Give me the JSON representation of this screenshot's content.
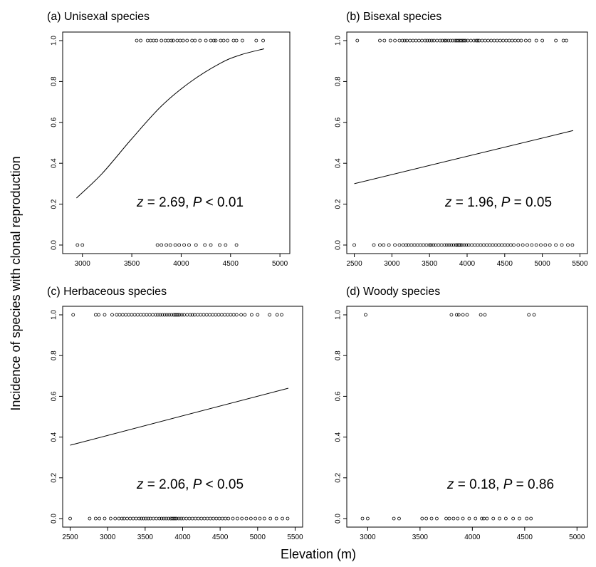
{
  "chart_data": {
    "type": "scatter",
    "ylabel": "Incidence of species with clonal reproduction",
    "xlabel": "Elevation (m)",
    "panels": [
      {
        "title": "(a) Unisexal species",
        "xlim": [
          2800,
          5100
        ],
        "ylim": [
          0,
          1
        ],
        "xticks": [
          "3000",
          "3500",
          "4000",
          "4500",
          "5000"
        ],
        "yticks": [
          "0.0",
          "0.2",
          "0.4",
          "0.6",
          "0.8",
          "1.0"
        ],
        "stat": {
          "z_label": "z",
          "z_text": " = 2.69, ",
          "p_label": "P",
          "p_text": " < 0.01"
        },
        "points_y1": [
          3550,
          3590,
          3660,
          3690,
          3720,
          3750,
          3800,
          3840,
          3870,
          3900,
          3920,
          3960,
          3990,
          4020,
          4060,
          4110,
          4140,
          4190,
          4250,
          4300,
          4330,
          4350,
          4400,
          4430,
          4470,
          4530,
          4560,
          4620,
          4760,
          4830
        ],
        "points_y0": [
          2950,
          3000,
          3760,
          3800,
          3850,
          3890,
          3940,
          3980,
          4030,
          4080,
          4150,
          4240,
          4300,
          4390,
          4450,
          4560
        ],
        "fit": {
          "kind": "logistic",
          "points": [
            [
              2940,
              0.23
            ],
            [
              3200,
              0.35
            ],
            [
              3500,
              0.52
            ],
            [
              3800,
              0.68
            ],
            [
              4100,
              0.8
            ],
            [
              4400,
              0.89
            ],
            [
              4600,
              0.93
            ],
            [
              4840,
              0.96
            ]
          ]
        }
      },
      {
        "title": "(b) Bisexal species",
        "xlim": [
          2400,
          5600
        ],
        "ylim": [
          0,
          1
        ],
        "xticks": [
          "2500",
          "3000",
          "3500",
          "4000",
          "4500",
          "5000",
          "5500"
        ],
        "yticks": [
          "0.0",
          "0.2",
          "0.4",
          "0.6",
          "0.8",
          "1.0"
        ],
        "stat": {
          "z_label": "z",
          "z_text": " = 1.96, ",
          "p_label": "P",
          "p_text": " = 0.05"
        },
        "points_y1": [
          2540,
          2840,
          2900,
          2980,
          3040,
          3100,
          3140,
          3170,
          3200,
          3240,
          3280,
          3320,
          3360,
          3400,
          3440,
          3470,
          3500,
          3530,
          3560,
          3600,
          3640,
          3670,
          3700,
          3720,
          3750,
          3780,
          3810,
          3840,
          3860,
          3880,
          3900,
          3920,
          3940,
          3960,
          3980,
          4010,
          4050,
          4090,
          4120,
          4140,
          4160,
          4200,
          4240,
          4280,
          4320,
          4360,
          4400,
          4440,
          4480,
          4520,
          4560,
          4600,
          4640,
          4680,
          4720,
          4780,
          4830,
          4920,
          5000,
          5180,
          5280,
          5320
        ],
        "points_y0": [
          2500,
          2760,
          2840,
          2890,
          2960,
          3040,
          3100,
          3150,
          3190,
          3220,
          3260,
          3300,
          3340,
          3380,
          3420,
          3460,
          3500,
          3520,
          3550,
          3580,
          3620,
          3660,
          3700,
          3730,
          3760,
          3790,
          3820,
          3850,
          3870,
          3890,
          3910,
          3930,
          3960,
          3990,
          4020,
          4060,
          4100,
          4140,
          4180,
          4220,
          4260,
          4300,
          4340,
          4380,
          4420,
          4460,
          4500,
          4540,
          4580,
          4620,
          4680,
          4740,
          4800,
          4860,
          4920,
          4980,
          5040,
          5100,
          5180,
          5260,
          5340,
          5400
        ],
        "fit": {
          "kind": "line",
          "points": [
            [
              2500,
              0.3
            ],
            [
              5410,
              0.56
            ]
          ]
        }
      },
      {
        "title": "(c) Herbaceous species",
        "xlim": [
          2400,
          5600
        ],
        "ylim": [
          0,
          1
        ],
        "xticks": [
          "2500",
          "3000",
          "3500",
          "4000",
          "4500",
          "5000",
          "5500"
        ],
        "yticks": [
          "0.0",
          "0.2",
          "0.4",
          "0.6",
          "0.8",
          "1.0"
        ],
        "stat": {
          "z_label": "z",
          "z_text": " = 2.06, ",
          "p_label": "P",
          "p_text": " < 0.05"
        },
        "points_y1": [
          2540,
          2840,
          2880,
          2960,
          3060,
          3120,
          3160,
          3200,
          3240,
          3280,
          3320,
          3360,
          3400,
          3440,
          3480,
          3520,
          3560,
          3600,
          3640,
          3670,
          3700,
          3730,
          3760,
          3790,
          3820,
          3850,
          3880,
          3900,
          3920,
          3940,
          3960,
          3990,
          4020,
          4060,
          4100,
          4130,
          4160,
          4200,
          4240,
          4280,
          4320,
          4360,
          4400,
          4440,
          4480,
          4520,
          4560,
          4600,
          4640,
          4680,
          4720,
          4780,
          4830,
          4920,
          5000,
          5160,
          5260,
          5320
        ],
        "points_y0": [
          2500,
          2760,
          2840,
          2890,
          2960,
          3040,
          3100,
          3150,
          3190,
          3220,
          3260,
          3300,
          3340,
          3380,
          3420,
          3450,
          3480,
          3510,
          3540,
          3570,
          3610,
          3650,
          3690,
          3720,
          3750,
          3780,
          3810,
          3840,
          3860,
          3880,
          3900,
          3920,
          3950,
          3980,
          4010,
          4050,
          4090,
          4130,
          4170,
          4210,
          4250,
          4290,
          4330,
          4370,
          4410,
          4450,
          4490,
          4530,
          4570,
          4610,
          4670,
          4730,
          4790,
          4850,
          4910,
          4970,
          5030,
          5090,
          5170,
          5250,
          5330,
          5400
        ],
        "fit": {
          "kind": "line",
          "points": [
            [
              2500,
              0.36
            ],
            [
              5410,
              0.64
            ]
          ]
        }
      },
      {
        "title": "(d) Woody species",
        "xlim": [
          2800,
          5100
        ],
        "ylim": [
          0,
          1
        ],
        "xticks": [
          "3000",
          "3500",
          "4000",
          "4500",
          "5000"
        ],
        "yticks": [
          "0.0",
          "0.2",
          "0.4",
          "0.6",
          "0.8",
          "1.0"
        ],
        "stat": {
          "z_label": "z",
          "z_text": " = 0.18, ",
          "p_label": "P",
          "p_text": " = 0.86"
        },
        "points_y1": [
          2980,
          3800,
          3850,
          3870,
          3910,
          3950,
          4080,
          4120,
          4540,
          4590
        ],
        "points_y0": [
          2950,
          3000,
          3250,
          3300,
          3520,
          3560,
          3610,
          3660,
          3750,
          3780,
          3820,
          3860,
          3910,
          3970,
          4030,
          4090,
          4110,
          4140,
          4200,
          4260,
          4320,
          4390,
          4450,
          4520,
          4560
        ],
        "fit": null
      }
    ]
  }
}
